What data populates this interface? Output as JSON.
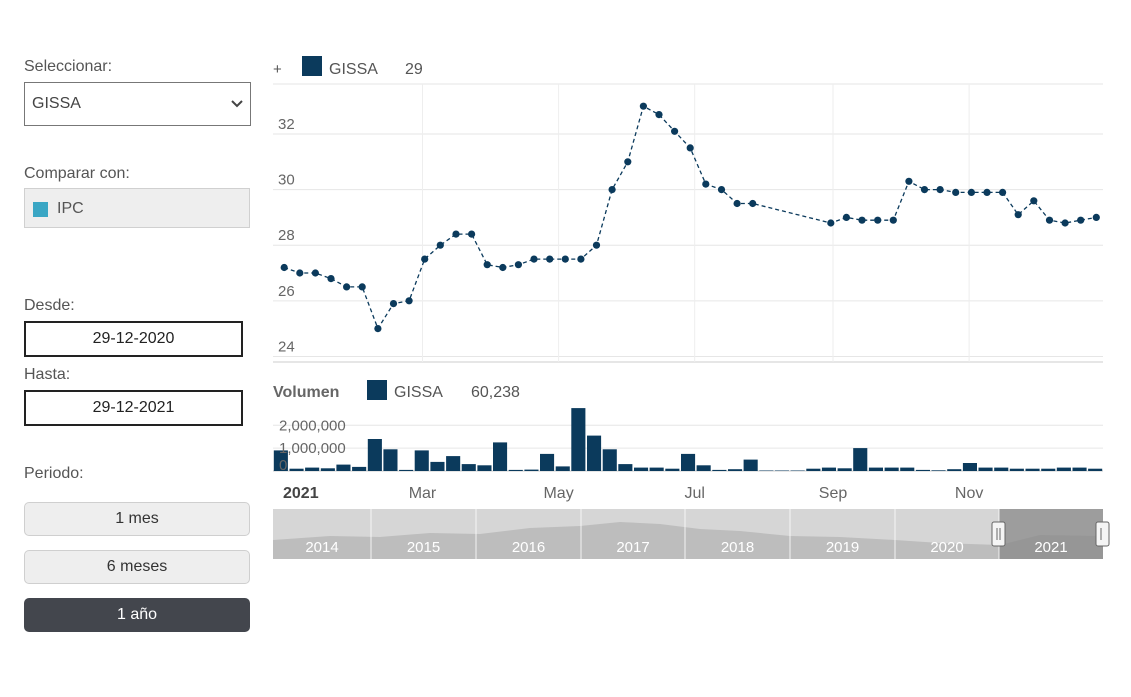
{
  "controls": {
    "select_label": "Seleccionar:",
    "selected_ticker": "GISSA",
    "compare_label": "Comparar con:",
    "compare_item": "IPC",
    "compare_color": "#3aa6c4",
    "from_label": "Desde:",
    "from_value": "29-12-2020",
    "to_label": "Hasta:",
    "to_value": "29-12-2021",
    "period_label": "Periodo:",
    "periods": [
      "1 mes",
      "6 meses",
      "1 año"
    ],
    "active_period": "1 año"
  },
  "chart_data": [
    {
      "type": "line",
      "legend_plus": "+",
      "series": [
        {
          "name": "GISSA",
          "color": "#0b3a5c",
          "last_value": "29",
          "x": [
            "2020-12-29",
            "2021-01-05",
            "2021-01-12",
            "2021-01-19",
            "2021-01-26",
            "2021-02-02",
            "2021-02-09",
            "2021-02-16",
            "2021-02-23",
            "2021-03-02",
            "2021-03-09",
            "2021-03-16",
            "2021-03-23",
            "2021-03-30",
            "2021-04-06",
            "2021-04-13",
            "2021-04-20",
            "2021-04-27",
            "2021-05-04",
            "2021-05-11",
            "2021-05-18",
            "2021-05-25",
            "2021-06-01",
            "2021-06-08",
            "2021-06-15",
            "2021-06-22",
            "2021-06-29",
            "2021-07-06",
            "2021-07-13",
            "2021-07-20",
            "2021-07-27",
            "2021-08-31",
            "2021-09-07",
            "2021-09-14",
            "2021-09-21",
            "2021-09-28",
            "2021-10-05",
            "2021-10-12",
            "2021-10-19",
            "2021-10-26",
            "2021-11-02",
            "2021-11-09",
            "2021-11-16",
            "2021-11-23",
            "2021-11-30",
            "2021-12-07",
            "2021-12-14",
            "2021-12-21",
            "2021-12-28"
          ],
          "values": [
            27.2,
            27.0,
            27.0,
            26.8,
            26.5,
            26.5,
            25.0,
            25.9,
            26.0,
            27.5,
            28.0,
            28.4,
            28.4,
            27.3,
            27.2,
            27.3,
            27.5,
            27.5,
            27.5,
            27.5,
            28.0,
            30.0,
            31.0,
            33.0,
            32.7,
            32.1,
            31.5,
            30.2,
            30.0,
            29.5,
            29.5,
            28.8,
            29.0,
            28.9,
            28.9,
            28.9,
            30.3,
            30.0,
            30.0,
            29.9,
            29.9,
            29.9,
            29.9,
            29.1,
            29.6,
            28.9,
            28.8,
            28.9,
            29.0
          ]
        }
      ],
      "y_ticks": [
        "32",
        "30",
        "28",
        "26",
        "24"
      ],
      "ylim": [
        23.8,
        33.8
      ],
      "grid": true
    },
    {
      "type": "bar",
      "title": "Volumen",
      "series": [
        {
          "name": "GISSA",
          "color": "#0b3a5c",
          "last_value": "60,238",
          "values": [
            900000,
            100000,
            150000,
            120000,
            280000,
            180000,
            1400000,
            950000,
            50000,
            900000,
            400000,
            650000,
            300000,
            250000,
            1250000,
            50000,
            60000,
            750000,
            200000,
            2750000,
            1550000,
            950000,
            300000,
            150000,
            150000,
            100000,
            750000,
            250000,
            50000,
            80000,
            500000,
            20000,
            20000,
            20000,
            100000,
            150000,
            120000,
            1000000,
            150000,
            150000,
            150000,
            50000,
            30000,
            80000,
            350000,
            150000,
            150000,
            100000,
            100000,
            100000,
            150000,
            150000,
            100000
          ]
        }
      ],
      "y_ticks": [
        "2,000,000",
        "1,000,000",
        "0"
      ],
      "x_ticks": [
        "2021",
        "Mar",
        "May",
        "Jul",
        "Sep",
        "Nov"
      ],
      "ylim": [
        0,
        2800000
      ]
    }
  ],
  "navigator": {
    "years": [
      "2014",
      "2015",
      "2016",
      "2017",
      "2018",
      "2019",
      "2020",
      "2021"
    ],
    "selected_year": "2021"
  }
}
